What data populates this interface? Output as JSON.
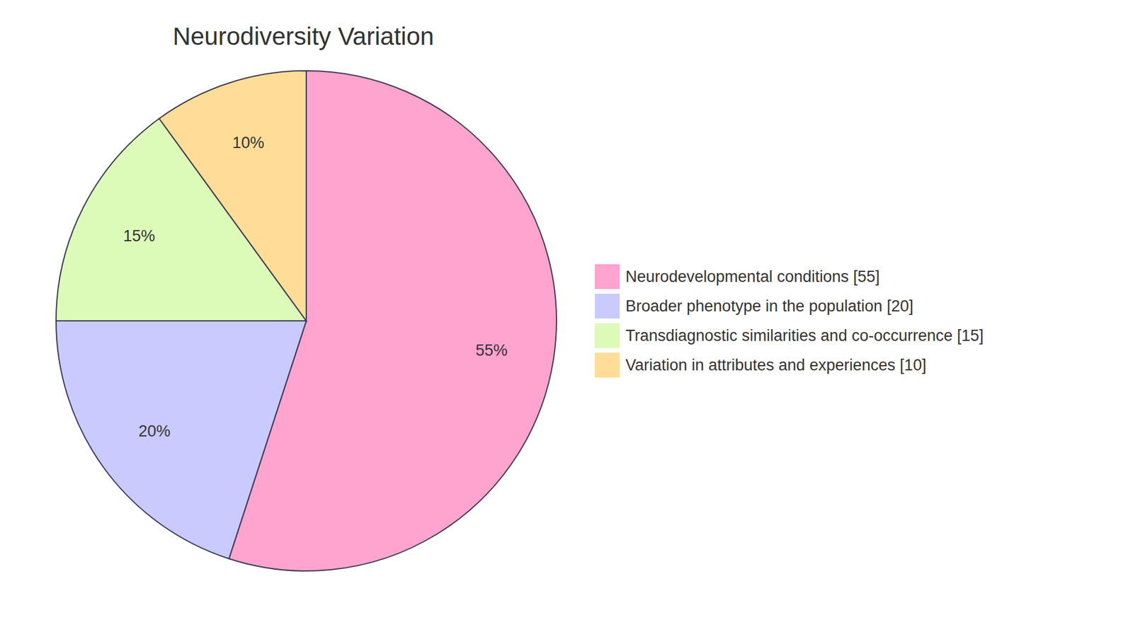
{
  "chart_data": {
    "type": "pie",
    "title": "Neurodiversity Variation",
    "categories": [
      "Neurodevelopmental conditions [55]",
      "Broader phenotype in the population [20]",
      "Transdiagnostic similarities and co-occurrence [15]",
      "Variation in attributes and experiences [10]"
    ],
    "values": [
      55,
      20,
      15,
      10
    ],
    "value_labels": [
      "55%",
      "20%",
      "15%",
      "10%"
    ],
    "colors": [
      "#FFA3CF",
      "#C9CAFF",
      "#DCFBB8",
      "#FFDD96"
    ],
    "data_labels": true,
    "legend": "right"
  }
}
